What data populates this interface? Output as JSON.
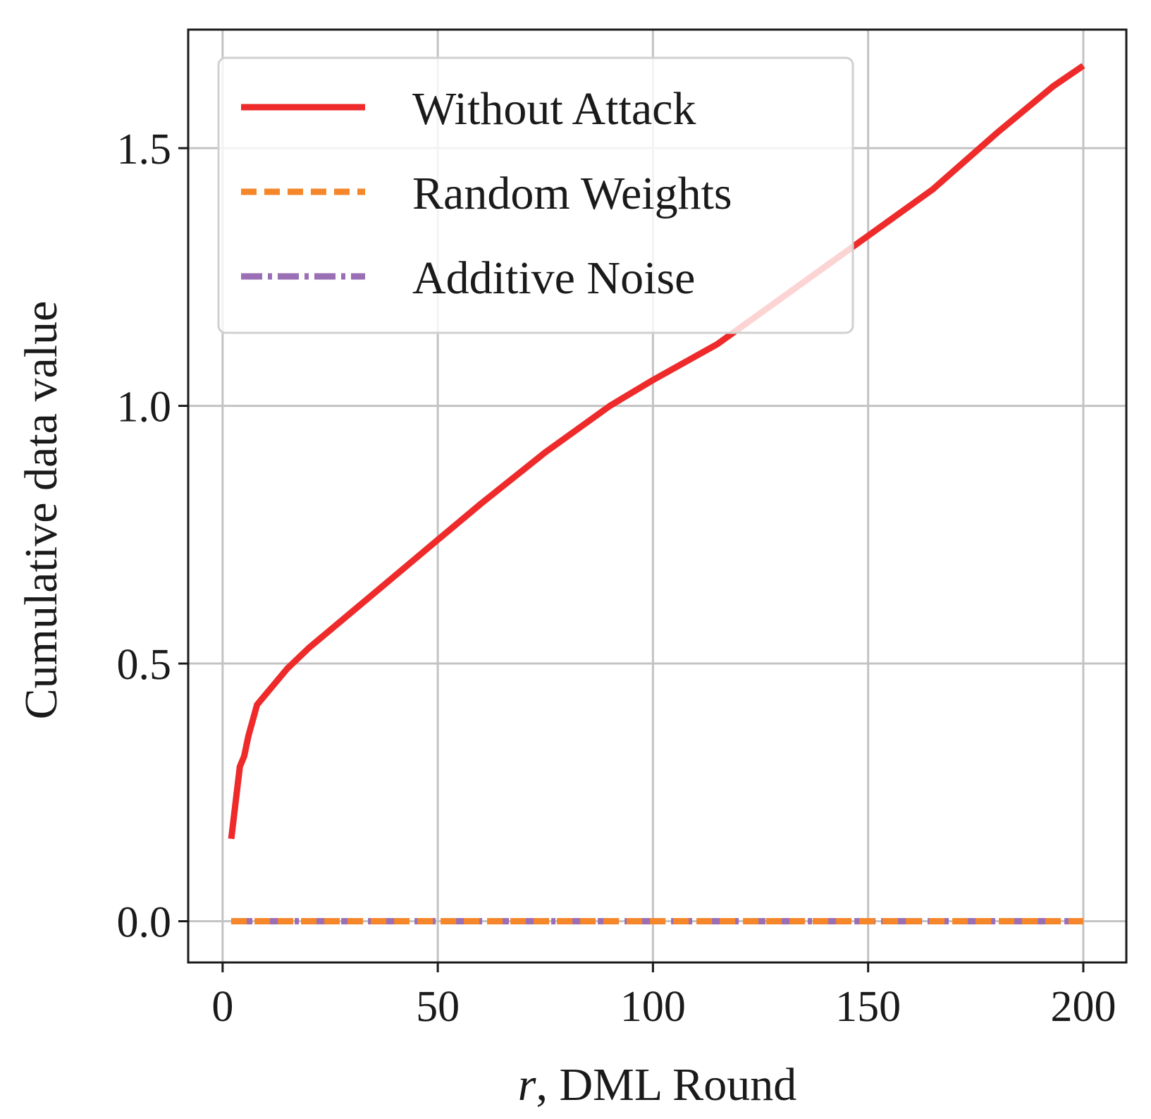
{
  "chart_data": {
    "type": "line",
    "xlabel_var": "r",
    "xlabel_rest": ", DML Round",
    "ylabel": "Cumulative data value",
    "xlim": [
      -8,
      210
    ],
    "ylim": [
      -0.08,
      1.73
    ],
    "xticks": [
      0,
      50,
      100,
      150,
      200
    ],
    "xtick_labels": [
      "0",
      "50",
      "100",
      "150",
      "200"
    ],
    "yticks": [
      0.0,
      0.5,
      1.0,
      1.5
    ],
    "ytick_labels": [
      "0.0",
      "0.5",
      "1.0",
      "1.5"
    ],
    "grid": true,
    "legend_position": "top-left",
    "series": [
      {
        "name": "Without Attack",
        "color": "#ee2a2a",
        "style": "solid",
        "x": [
          2,
          4,
          5,
          6,
          7,
          8,
          10,
          15,
          20,
          30,
          40,
          50,
          60,
          75,
          90,
          100,
          115,
          130,
          150,
          165,
          180,
          193,
          200
        ],
        "y": [
          0.16,
          0.3,
          0.32,
          0.36,
          0.39,
          0.42,
          0.44,
          0.49,
          0.53,
          0.6,
          0.67,
          0.74,
          0.81,
          0.91,
          1.0,
          1.05,
          1.12,
          1.21,
          1.33,
          1.42,
          1.53,
          1.62,
          1.66
        ]
      },
      {
        "name": "Random Weights",
        "color": "#f5862a",
        "style": "dashed",
        "x": [
          2,
          200
        ],
        "y": [
          0.0,
          0.0
        ]
      },
      {
        "name": "Additive Noise",
        "color": "#9a6fb6",
        "style": "dashdot",
        "x": [
          2,
          200
        ],
        "y": [
          0.0,
          0.0
        ]
      }
    ]
  }
}
